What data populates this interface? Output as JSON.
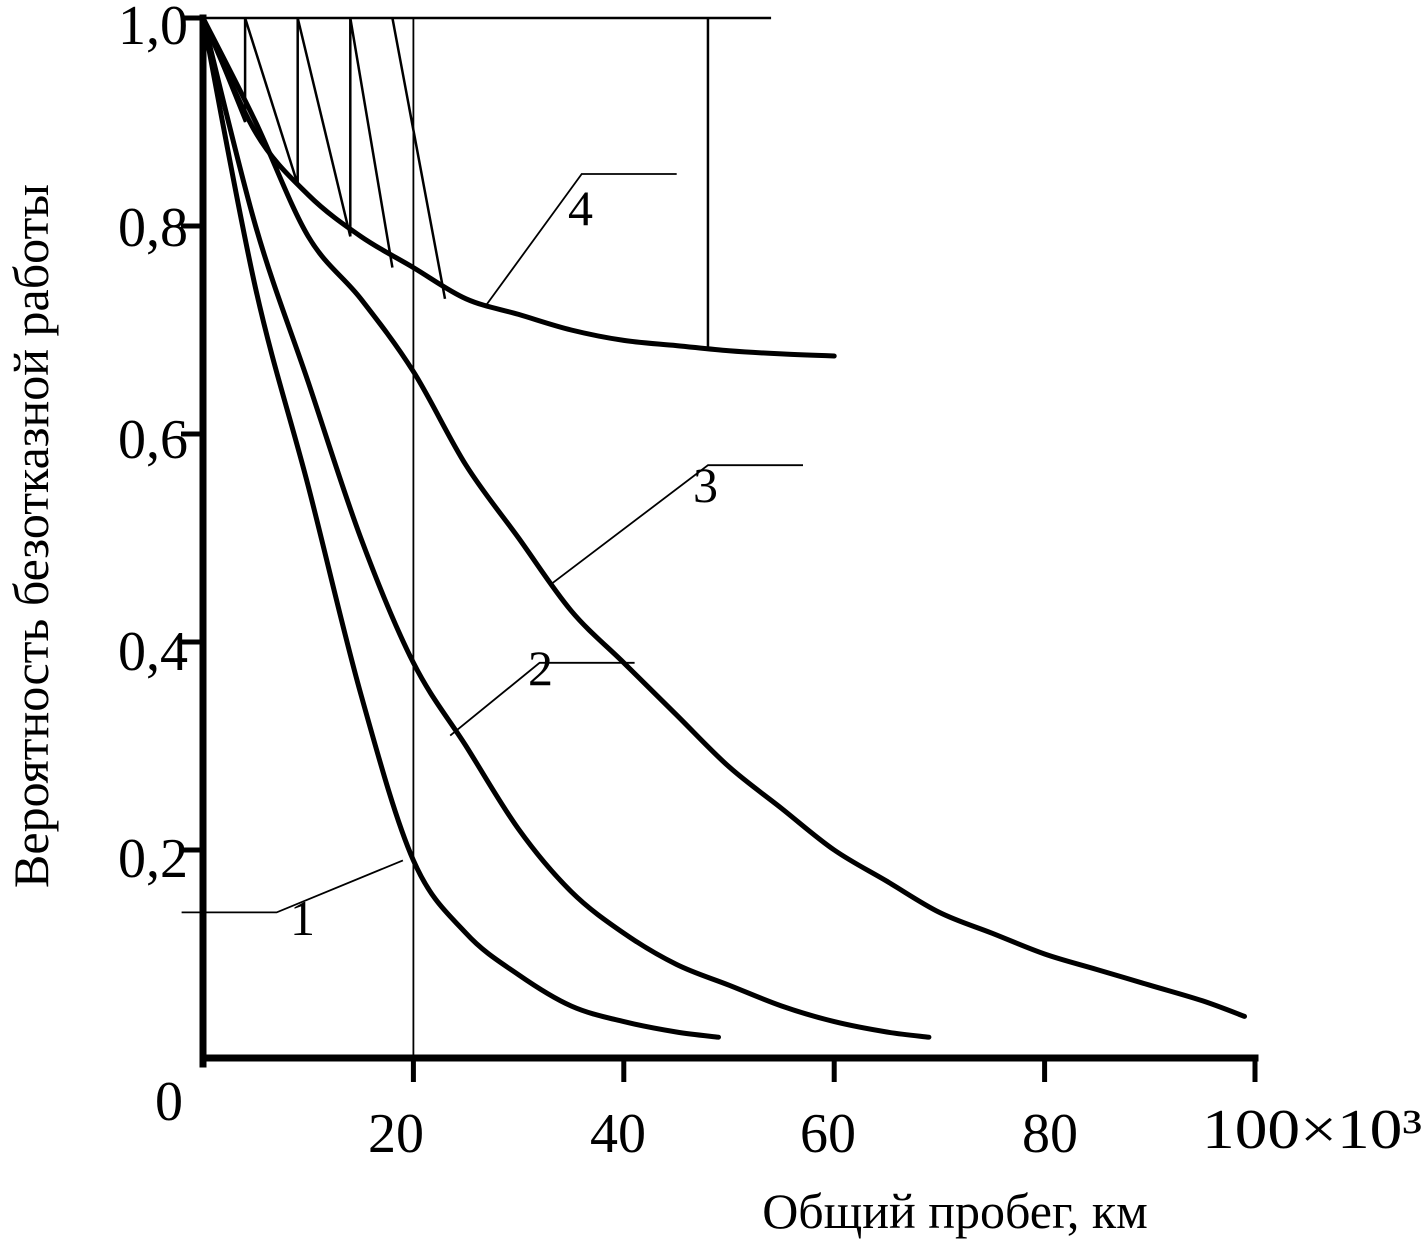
{
  "chart_data": {
    "type": "line",
    "title": "",
    "xlabel": "Общий пробег, км",
    "ylabel": "Вероятность безотказной работы",
    "x_multiplier_label": "×10³",
    "xlim": [
      0,
      100
    ],
    "ylim": [
      0,
      1.0
    ],
    "x_ticks": [
      "0",
      "20",
      "40",
      "60",
      "80",
      "100"
    ],
    "y_ticks": [
      "0,2",
      "0,4",
      "0,6",
      "0,8",
      "1,0"
    ],
    "origin_label": "0",
    "grid": false,
    "series": [
      {
        "name": "1",
        "x": [
          0,
          5,
          10,
          15,
          20,
          25,
          30,
          35,
          40,
          45,
          49
        ],
        "y": [
          1.0,
          0.74,
          0.55,
          0.35,
          0.19,
          0.12,
          0.08,
          0.05,
          0.035,
          0.025,
          0.02
        ]
      },
      {
        "name": "2",
        "x": [
          0,
          5,
          10,
          15,
          20,
          25,
          30,
          35,
          40,
          45,
          50,
          55,
          60,
          65,
          69
        ],
        "y": [
          1.0,
          0.8,
          0.65,
          0.5,
          0.38,
          0.3,
          0.22,
          0.16,
          0.12,
          0.09,
          0.07,
          0.05,
          0.035,
          0.025,
          0.02
        ]
      },
      {
        "name": "3",
        "x": [
          0,
          5,
          10,
          15,
          20,
          25,
          30,
          35,
          40,
          45,
          50,
          55,
          60,
          65,
          70,
          75,
          80,
          85,
          90,
          95,
          99
        ],
        "y": [
          1.0,
          0.9,
          0.79,
          0.73,
          0.66,
          0.57,
          0.5,
          0.43,
          0.38,
          0.33,
          0.28,
          0.24,
          0.2,
          0.17,
          0.14,
          0.12,
          0.1,
          0.085,
          0.07,
          0.055,
          0.04
        ]
      },
      {
        "name": "4",
        "x": [
          0,
          5,
          10,
          15,
          20,
          25,
          30,
          35,
          40,
          45,
          50,
          55,
          60
        ],
        "y": [
          1.0,
          0.89,
          0.83,
          0.79,
          0.76,
          0.73,
          0.715,
          0.7,
          0.69,
          0.685,
          0.68,
          0.677,
          0.675
        ]
      }
    ],
    "maintenance_lines": {
      "upper_y": 1.0,
      "upper_x_range": [
        0,
        54
      ],
      "sawtooth": [
        [
          [
            4,
            1.0
          ],
          [
            4,
            0.9
          ],
          [
            0,
            1.0
          ]
        ],
        [
          [
            4,
            1.0
          ],
          [
            9,
            0.84
          ]
        ],
        [
          [
            9,
            1.0
          ],
          [
            9,
            0.84
          ]
        ],
        [
          [
            9,
            1.0
          ],
          [
            14,
            0.79
          ]
        ],
        [
          [
            14,
            1.0
          ],
          [
            14,
            0.79
          ]
        ],
        [
          [
            14,
            1.0
          ],
          [
            18,
            0.76
          ]
        ],
        [
          [
            18,
            1.0
          ],
          [
            23,
            0.73
          ]
        ]
      ],
      "vertical_x_20": [
        20,
        0.0,
        1.0
      ],
      "vertical_x_48": [
        48,
        0.682,
        1.0
      ]
    },
    "curve_labels": [
      {
        "text": "1",
        "series": "1",
        "attach_x": 19,
        "attach_y": 0.19,
        "label_x": 7,
        "label_y": 0.14
      },
      {
        "text": "2",
        "series": "2",
        "attach_x": 23.5,
        "attach_y": 0.31,
        "label_x": 32,
        "label_y": 0.38
      },
      {
        "text": "3",
        "series": "3",
        "attach_x": 33,
        "attach_y": 0.455,
        "label_x": 48,
        "label_y": 0.57
      },
      {
        "text": "4",
        "series": "4",
        "attach_x": 27,
        "attach_y": 0.725,
        "label_x": 36,
        "label_y": 0.85
      }
    ]
  }
}
